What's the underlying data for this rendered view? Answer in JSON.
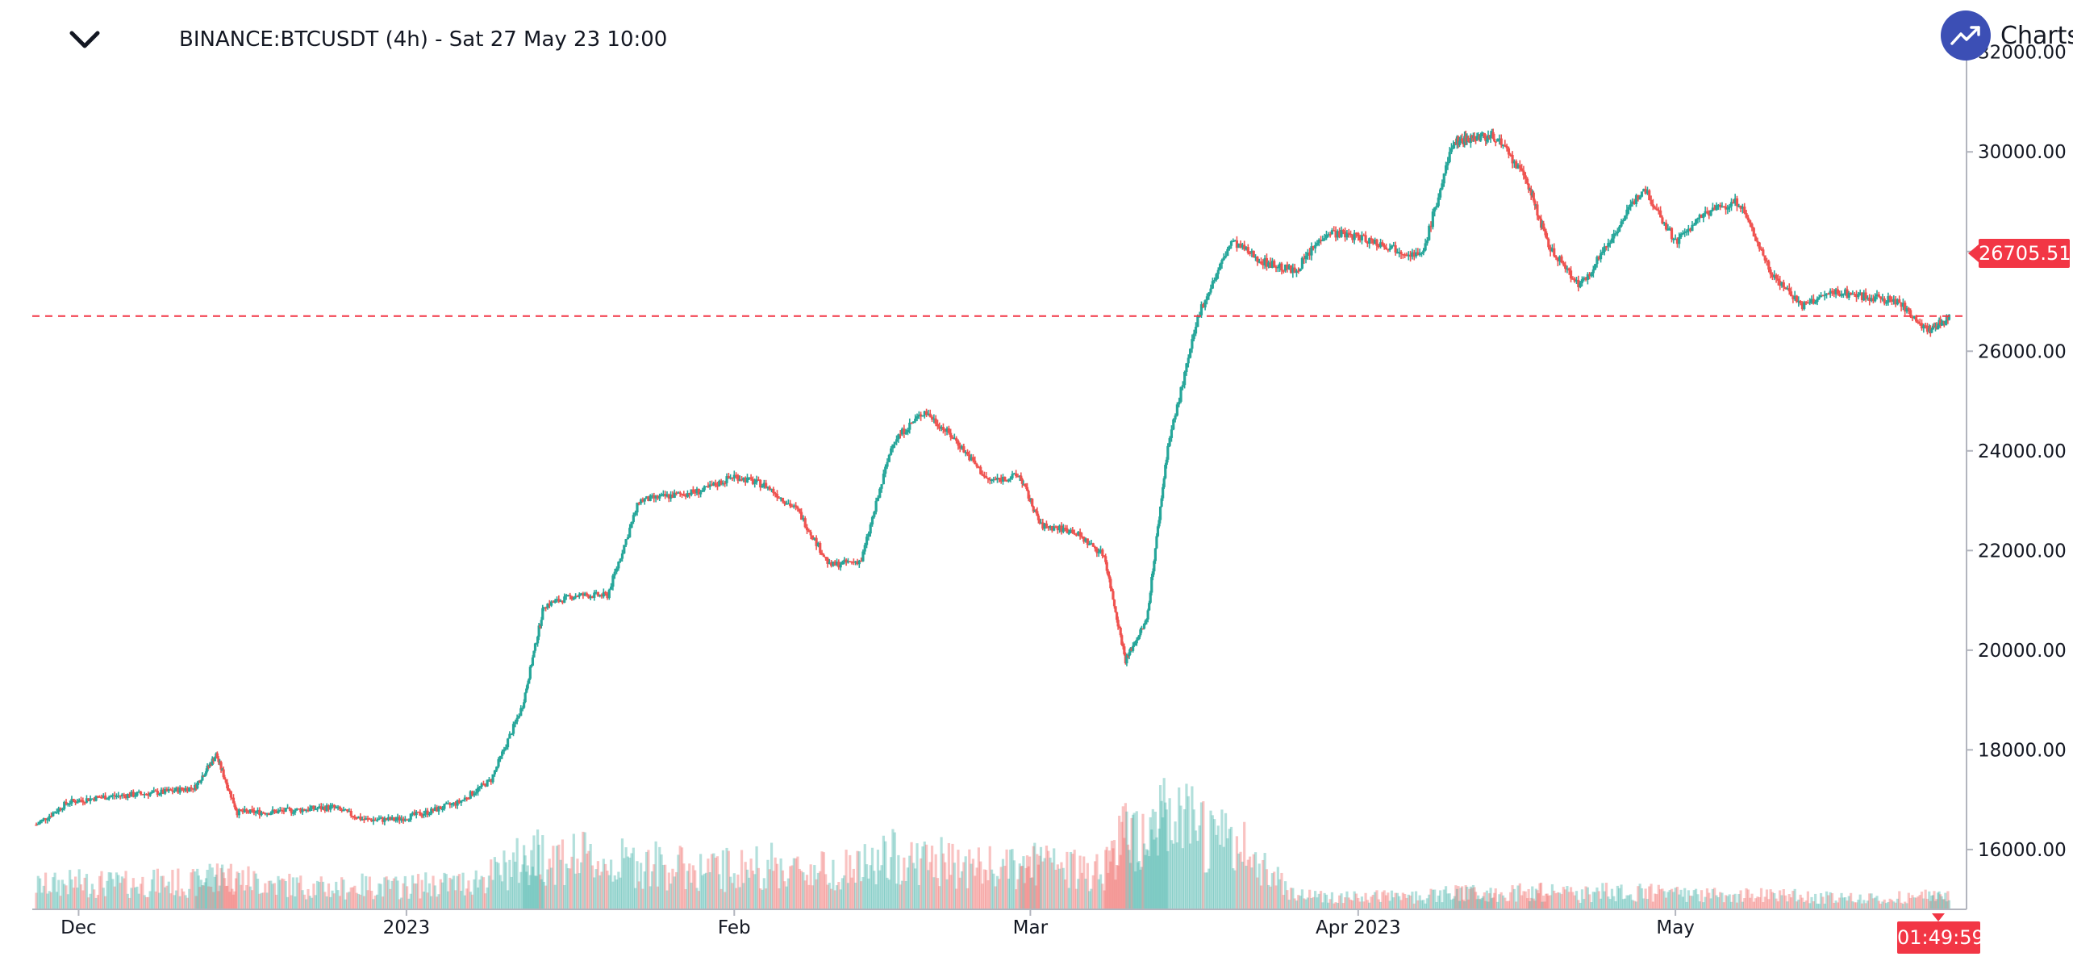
{
  "header": {
    "title": "BINANCE:BTCUSDT (4h) - Sat 27 May 23 10:00"
  },
  "logo": {
    "text": "Charts p"
  },
  "icons": {
    "collapse": "chevron-down-icon",
    "logo": "trend-up-icon"
  },
  "colors": {
    "up": "#26a69a",
    "down": "#ef5350",
    "price_line": "#f23645",
    "logo_bg": "#3c4fb5"
  },
  "current_price_label": "26705.51",
  "countdown": "01:49:59",
  "chart_data": {
    "type": "candlestick",
    "title": "BINANCE:BTCUSDT (4h) - Sat 27 May 23 10:00",
    "ylim": [
      14800,
      32400
    ],
    "y_ticks": [
      "16000.00",
      "18000.00",
      "20000.00",
      "22000.00",
      "24000.00",
      "26000.00",
      "28000.00",
      "30000.00",
      "32000.00"
    ],
    "x_ticks": [
      "Dec",
      "2023",
      "Feb",
      "Mar",
      "Apr 2023",
      "May"
    ],
    "x_range": [
      "2022-11-27",
      "2023-05-27"
    ],
    "current_price": 26705.51,
    "grid": false,
    "series": [
      {
        "name": "BTCUSDT",
        "x": [
          "2022-11-27",
          "2022-11-30",
          "2022-12-03",
          "2022-12-06",
          "2022-12-09",
          "2022-12-12",
          "2022-12-14",
          "2022-12-16",
          "2022-12-19",
          "2022-12-22",
          "2022-12-25",
          "2022-12-28",
          "2022-12-31",
          "2023-01-03",
          "2023-01-06",
          "2023-01-09",
          "2023-01-12",
          "2023-01-14",
          "2023-01-17",
          "2023-01-20",
          "2023-01-23",
          "2023-01-26",
          "2023-01-29",
          "2023-02-01",
          "2023-02-04",
          "2023-02-07",
          "2023-02-10",
          "2023-02-13",
          "2023-02-16",
          "2023-02-19",
          "2023-02-22",
          "2023-02-25",
          "2023-02-28",
          "2023-03-02",
          "2023-03-05",
          "2023-03-08",
          "2023-03-10",
          "2023-03-12",
          "2023-03-14",
          "2023-03-17",
          "2023-03-20",
          "2023-03-23",
          "2023-03-26",
          "2023-03-29",
          "2023-04-01",
          "2023-04-04",
          "2023-04-07",
          "2023-04-10",
          "2023-04-12",
          "2023-04-14",
          "2023-04-17",
          "2023-04-19",
          "2023-04-22",
          "2023-04-25",
          "2023-04-28",
          "2023-05-01",
          "2023-05-04",
          "2023-05-07",
          "2023-05-10",
          "2023-05-13",
          "2023-05-16",
          "2023-05-19",
          "2023-05-22",
          "2023-05-25",
          "2023-05-27"
        ],
        "close": [
          16500,
          16950,
          17050,
          17100,
          17150,
          17250,
          17900,
          16750,
          16750,
          16800,
          16850,
          16600,
          16600,
          16750,
          16950,
          17400,
          18900,
          20900,
          21100,
          21100,
          23000,
          23100,
          23200,
          23500,
          23300,
          22800,
          21700,
          21800,
          24200,
          24800,
          24200,
          23400,
          23500,
          22500,
          22400,
          21900,
          19800,
          20600,
          24100,
          26800,
          28200,
          27800,
          27600,
          28400,
          28300,
          28100,
          27900,
          30200,
          30300,
          30300,
          29400,
          28100,
          27300,
          28300,
          29300,
          28200,
          28800,
          29000,
          27600,
          26900,
          27200,
          27100,
          27000,
          26400,
          26705.51
        ],
        "volume": [
          0.18,
          0.2,
          0.2,
          0.19,
          0.21,
          0.2,
          0.27,
          0.24,
          0.2,
          0.18,
          0.16,
          0.18,
          0.17,
          0.19,
          0.2,
          0.26,
          0.38,
          0.42,
          0.4,
          0.35,
          0.36,
          0.33,
          0.3,
          0.31,
          0.34,
          0.3,
          0.31,
          0.32,
          0.4,
          0.38,
          0.34,
          0.32,
          0.3,
          0.36,
          0.3,
          0.33,
          0.58,
          0.62,
          0.68,
          0.6,
          0.5,
          0.35,
          0.12,
          0.1,
          0.09,
          0.1,
          0.1,
          0.12,
          0.13,
          0.11,
          0.14,
          0.13,
          0.11,
          0.14,
          0.13,
          0.12,
          0.11,
          0.1,
          0.12,
          0.1,
          0.09,
          0.09,
          0.09,
          0.1,
          0.09
        ]
      }
    ]
  }
}
